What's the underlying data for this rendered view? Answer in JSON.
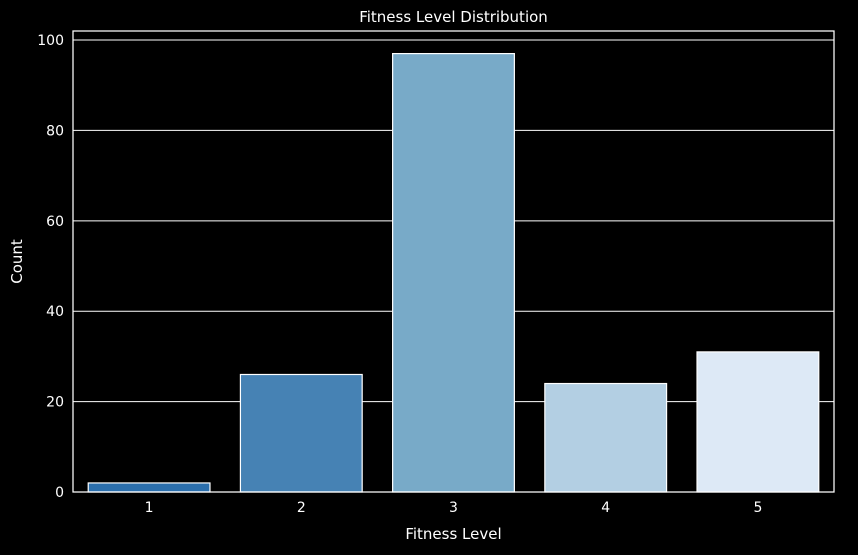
{
  "chart_data": {
    "type": "bar",
    "title": "Fitness Level Distribution",
    "xlabel": "Fitness Level",
    "ylabel": "Count",
    "categories": [
      "1",
      "2",
      "3",
      "4",
      "5"
    ],
    "values": [
      2,
      26,
      97,
      24,
      31
    ],
    "ylim": [
      0,
      102
    ],
    "yticks": [
      0,
      20,
      40,
      60,
      80,
      100
    ],
    "grid": true,
    "bar_colors": [
      "#2b6fad",
      "#4682b4",
      "#78aac8",
      "#b3cfe3",
      "#dde9f6"
    ],
    "background": "#000000",
    "foreground": "#ffffff"
  }
}
